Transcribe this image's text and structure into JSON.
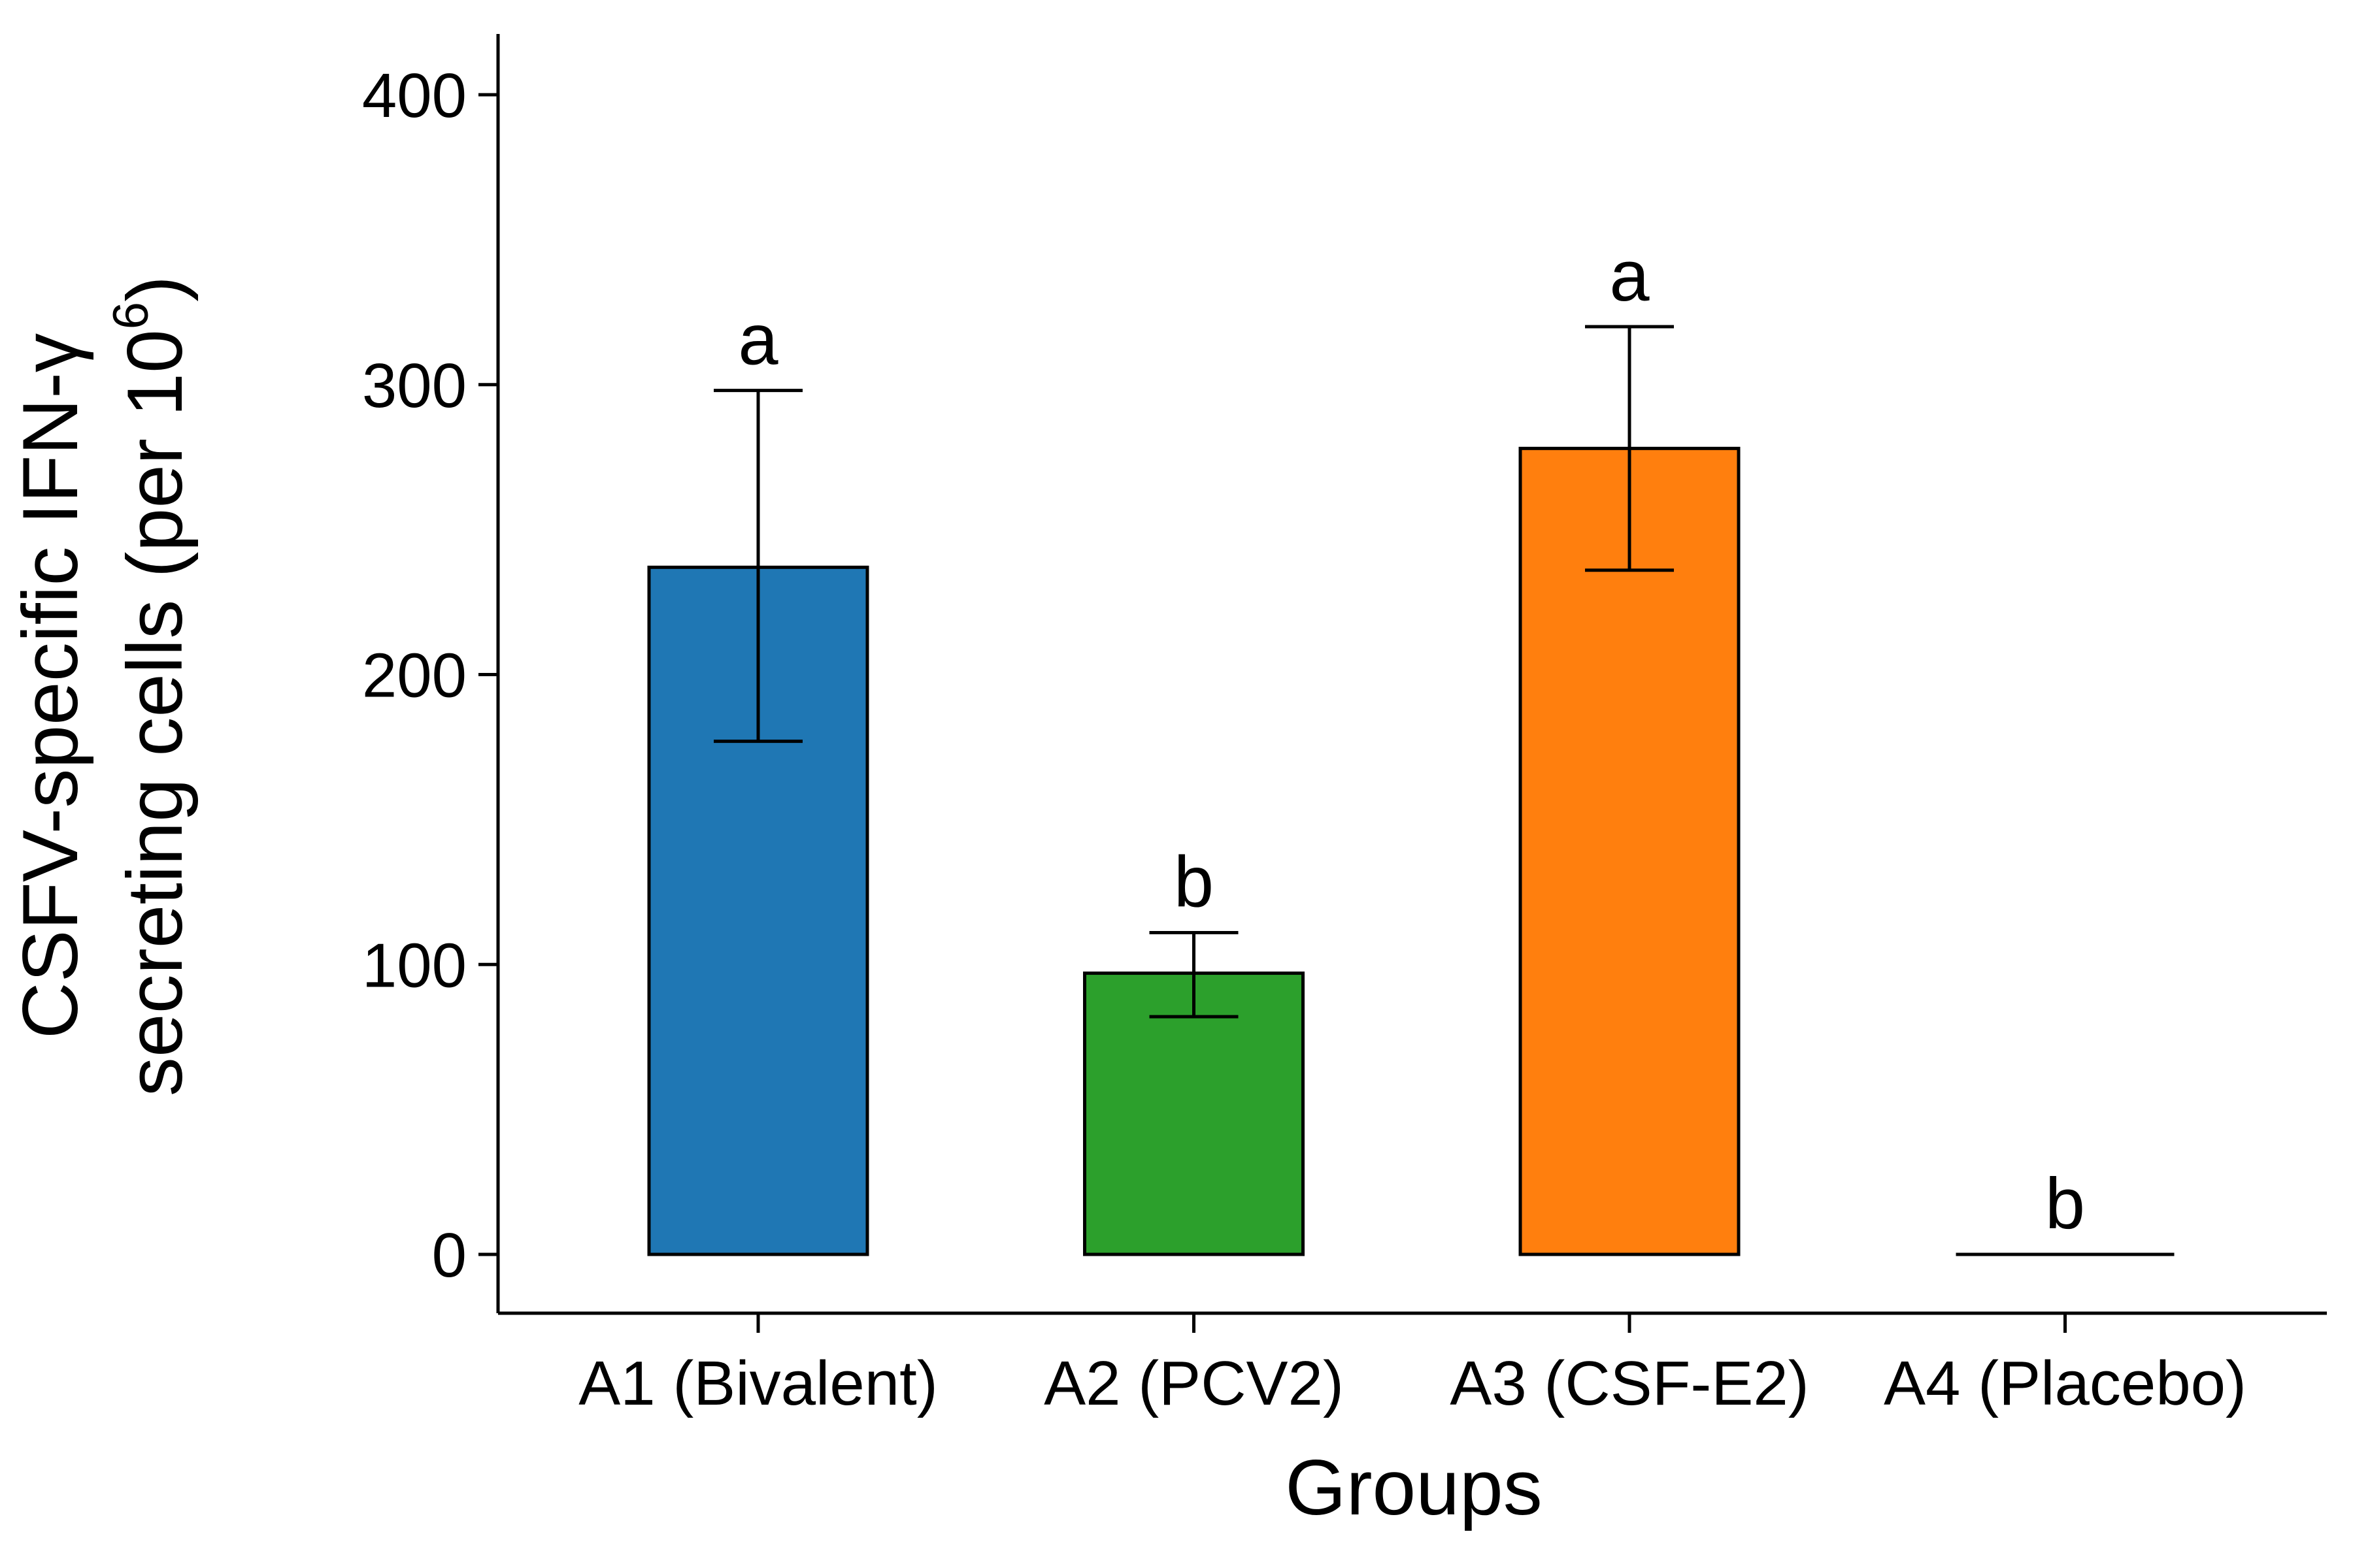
{
  "chart_data": {
    "type": "bar",
    "categories": [
      "A1 (Bivalent)",
      "A2 (PCV2)",
      "A3 (CSF-E2)",
      "A4 (Placebo)"
    ],
    "values": [
      237,
      97,
      278,
      0
    ],
    "error_low": [
      177,
      82,
      236,
      0
    ],
    "error_high": [
      298,
      111,
      320,
      0
    ],
    "significance": [
      "a",
      "b",
      "a",
      "b"
    ],
    "colors": [
      "#1f77b4",
      "#2ca02c",
      "#ff7f0e",
      "#ffffff"
    ],
    "edge_color": "#000000",
    "xlabel": "Groups",
    "ylabel_line1": "CSFV-specific IFN-γ",
    "ylabel_line2_main": "secreting cells (per 10",
    "ylabel_line2_sup": "6",
    "ylabel_line2_end": ")",
    "ylim": [
      -20,
      420
    ],
    "yticks": [
      0,
      100,
      200,
      300,
      400
    ],
    "grid": false,
    "legend": "none"
  }
}
